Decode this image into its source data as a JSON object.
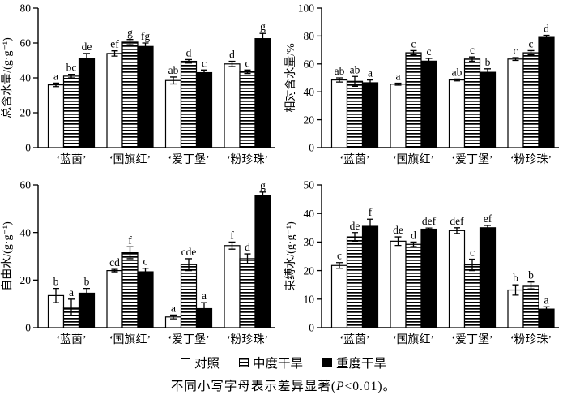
{
  "legend": {
    "items": [
      {
        "label": "对照",
        "pattern": "outline",
        "marker": "open-square-icon"
      },
      {
        "label": "中度干旱",
        "pattern": "stripes",
        "marker": "hstriped-square-icon"
      },
      {
        "label": "重度干旱",
        "pattern": "solid",
        "marker": "filled-square-icon"
      }
    ]
  },
  "footnote": {
    "prefix": "不同小写字母表示差异显著(",
    "p_symbol": "P",
    "suffix": "<0.01)。"
  },
  "chart_data": [
    {
      "type": "bar",
      "position": "top-left",
      "ylabel": "总含水量/(g·g⁻¹)",
      "ylim": [
        0,
        80
      ],
      "ytick_step": 20,
      "grid": false,
      "categories": [
        "‘蓝茵’",
        "‘国旗红’",
        "‘爱丁堡’",
        "‘粉珍珠’"
      ],
      "series": [
        {
          "name": "对照",
          "pattern": "outline",
          "values": [
            36,
            54,
            38.5,
            48
          ],
          "errors": [
            1,
            1.5,
            2,
            1.5
          ],
          "letters": [
            "a",
            "ef",
            "ab",
            "d"
          ]
        },
        {
          "name": "中度干旱",
          "pattern": "stripes",
          "values": [
            41,
            60.5,
            49.5,
            43.5
          ],
          "errors": [
            1,
            1.5,
            1,
            1
          ],
          "letters": [
            "bc",
            "g",
            "d",
            "c"
          ]
        },
        {
          "name": "重度干旱",
          "pattern": "solid",
          "values": [
            51,
            58,
            43,
            62.5
          ],
          "errors": [
            3,
            2,
            1.5,
            3
          ],
          "letters": [
            "de",
            "fg",
            "c",
            "g"
          ]
        }
      ]
    },
    {
      "type": "bar",
      "position": "top-right",
      "ylabel": "相对含水量/%",
      "ylim": [
        0,
        100
      ],
      "ytick_step": 20,
      "grid": false,
      "categories": [
        "‘蓝茵’",
        "‘国旗红’",
        "‘爱丁堡’",
        "‘粉珍珠’"
      ],
      "series": [
        {
          "name": "对照",
          "pattern": "outline",
          "values": [
            48.5,
            45.5,
            48.5,
            63.5
          ],
          "errors": [
            1.5,
            0.7,
            0.7,
            1
          ],
          "letters": [
            "ab",
            "a",
            "ab",
            "c"
          ]
        },
        {
          "name": "中度干旱",
          "pattern": "stripes",
          "values": [
            47.5,
            68,
            63.5,
            68
          ],
          "errors": [
            3.5,
            1.5,
            1.5,
            1.5
          ],
          "letters": [
            "ab",
            "c",
            "c",
            "c"
          ]
        },
        {
          "name": "重度干旱",
          "pattern": "solid",
          "values": [
            46.5,
            62,
            54,
            79
          ],
          "errors": [
            2,
            2,
            2.5,
            1.5
          ],
          "letters": [
            "a",
            "c",
            "b",
            "d"
          ]
        }
      ]
    },
    {
      "type": "bar",
      "position": "bottom-left",
      "ylabel": "自由水/(g·g⁻¹)",
      "ylim": [
        0,
        60
      ],
      "ytick_step": 20,
      "grid": false,
      "categories": [
        "‘蓝茵’",
        "‘国旗红’",
        "‘爱丁堡’",
        "‘粉珍珠’"
      ],
      "series": [
        {
          "name": "对照",
          "pattern": "outline",
          "values": [
            13.5,
            24,
            4.5,
            34.5
          ],
          "errors": [
            3,
            0.5,
            0.8,
            1.5
          ],
          "letters": [
            "b",
            "cd",
            "a",
            "f"
          ]
        },
        {
          "name": "中度干旱",
          "pattern": "stripes",
          "values": [
            8.5,
            31.5,
            26.5,
            29
          ],
          "errors": [
            3.5,
            2.5,
            2.5,
            2
          ],
          "letters": [
            "a",
            "f",
            "cde",
            "d"
          ]
        },
        {
          "name": "重度干旱",
          "pattern": "solid",
          "values": [
            14.5,
            23.5,
            8,
            55.5
          ],
          "errors": [
            2,
            1.5,
            2.5,
            1.5
          ],
          "letters": [
            "b",
            "c",
            "a",
            "g"
          ]
        }
      ]
    },
    {
      "type": "bar",
      "position": "bottom-right",
      "ylabel": "束缚水/(g·g⁻¹)",
      "ylim": [
        0,
        50
      ],
      "ytick_step": 10,
      "grid": false,
      "categories": [
        "‘蓝茵’",
        "‘国旗红’",
        "‘爱丁堡’",
        "‘粉珍珠’"
      ],
      "series": [
        {
          "name": "对照",
          "pattern": "outline",
          "values": [
            21.8,
            30.3,
            34,
            13.2
          ],
          "errors": [
            1,
            1.5,
            1,
            1.8
          ],
          "letters": [
            "c",
            "de",
            "def",
            "b"
          ]
        },
        {
          "name": "中度干旱",
          "pattern": "stripes",
          "values": [
            31.8,
            29.2,
            22,
            14.8
          ],
          "errors": [
            1.5,
            0.8,
            2,
            1.2
          ],
          "letters": [
            "de",
            "d",
            "c",
            "b"
          ]
        },
        {
          "name": "重度干旱",
          "pattern": "solid",
          "values": [
            35.5,
            34.5,
            35,
            6.5
          ],
          "errors": [
            2.5,
            0.4,
            0.8,
            0.8
          ],
          "letters": [
            "f",
            "def",
            "ef",
            "a"
          ]
        }
      ]
    }
  ]
}
